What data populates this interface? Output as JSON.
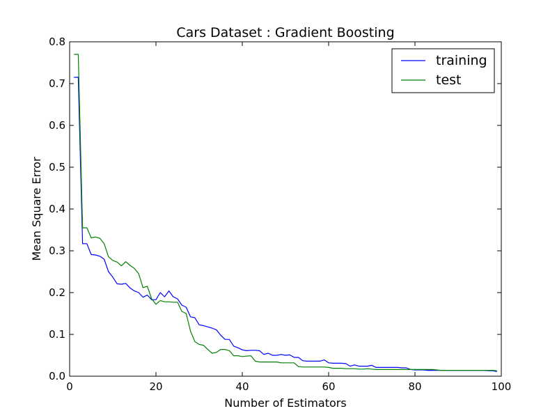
{
  "chart_data": {
    "type": "line",
    "title": "Cars Dataset :  Gradient Boosting",
    "xlabel": "Number of Estimators",
    "ylabel": "Mean Square Error",
    "xlim": [
      0,
      100
    ],
    "ylim": [
      0.0,
      0.8
    ],
    "x_ticks": [
      "0",
      "20",
      "40",
      "60",
      "80",
      "100"
    ],
    "y_ticks": [
      "0.0",
      "0.1",
      "0.2",
      "0.3",
      "0.4",
      "0.5",
      "0.6",
      "0.7",
      "0.8"
    ],
    "grid": false,
    "legend_position": "top-right",
    "series": [
      {
        "name": "training",
        "color": "#0000ff",
        "x": [
          1,
          2,
          3,
          4,
          5,
          6,
          7,
          8,
          9,
          10,
          11,
          12,
          13,
          14,
          15,
          16,
          17,
          18,
          19,
          20,
          21,
          22,
          23,
          24,
          25,
          26,
          27,
          28,
          29,
          30,
          31,
          32,
          33,
          34,
          35,
          36,
          37,
          38,
          39,
          40,
          41,
          42,
          43,
          44,
          45,
          46,
          47,
          48,
          49,
          50,
          51,
          52,
          53,
          54,
          55,
          56,
          57,
          58,
          59,
          60,
          61,
          62,
          63,
          64,
          65,
          66,
          67,
          68,
          69,
          70,
          71,
          72,
          73,
          74,
          75,
          76,
          77,
          78,
          79,
          80,
          81,
          82,
          83,
          84,
          85,
          86,
          87,
          88,
          89,
          90,
          91,
          92,
          93,
          94,
          95,
          96,
          97,
          98,
          99
        ],
        "values": [
          0.715,
          0.715,
          0.317,
          0.317,
          0.291,
          0.29,
          0.287,
          0.28,
          0.25,
          0.237,
          0.221,
          0.22,
          0.222,
          0.211,
          0.204,
          0.2,
          0.189,
          0.194,
          0.183,
          0.183,
          0.2,
          0.19,
          0.204,
          0.19,
          0.185,
          0.17,
          0.165,
          0.142,
          0.14,
          0.123,
          0.121,
          0.118,
          0.115,
          0.111,
          0.098,
          0.088,
          0.088,
          0.072,
          0.068,
          0.063,
          0.061,
          0.062,
          0.062,
          0.061,
          0.052,
          0.055,
          0.05,
          0.05,
          0.052,
          0.05,
          0.051,
          0.045,
          0.045,
          0.037,
          0.036,
          0.036,
          0.036,
          0.036,
          0.039,
          0.032,
          0.031,
          0.031,
          0.031,
          0.03,
          0.024,
          0.027,
          0.024,
          0.024,
          0.024,
          0.026,
          0.021,
          0.021,
          0.021,
          0.021,
          0.021,
          0.021,
          0.02,
          0.02,
          0.016,
          0.015,
          0.015,
          0.015,
          0.014,
          0.014,
          0.014,
          0.014,
          0.014,
          0.014,
          0.014,
          0.014,
          0.014,
          0.014,
          0.014,
          0.014,
          0.014,
          0.014,
          0.013,
          0.013,
          0.011
        ]
      },
      {
        "name": "test",
        "color": "#008000",
        "x": [
          1,
          2,
          3,
          4,
          5,
          6,
          7,
          8,
          9,
          10,
          11,
          12,
          13,
          14,
          15,
          16,
          17,
          18,
          19,
          20,
          21,
          22,
          23,
          24,
          25,
          26,
          27,
          28,
          29,
          30,
          31,
          32,
          33,
          34,
          35,
          36,
          37,
          38,
          39,
          40,
          41,
          42,
          43,
          44,
          45,
          46,
          47,
          48,
          49,
          50,
          51,
          52,
          53,
          54,
          55,
          56,
          57,
          58,
          59,
          60,
          61,
          62,
          63,
          64,
          65,
          66,
          67,
          68,
          69,
          70,
          71,
          72,
          73,
          74,
          75,
          76,
          77,
          78,
          79,
          80,
          81,
          82,
          83,
          84,
          85,
          86,
          87,
          88,
          89,
          90,
          91,
          92,
          93,
          94,
          95,
          96,
          97,
          98,
          99
        ],
        "values": [
          0.77,
          0.77,
          0.355,
          0.355,
          0.331,
          0.333,
          0.33,
          0.317,
          0.286,
          0.277,
          0.273,
          0.264,
          0.274,
          0.265,
          0.258,
          0.245,
          0.212,
          0.215,
          0.185,
          0.172,
          0.181,
          0.178,
          0.178,
          0.177,
          0.177,
          0.155,
          0.15,
          0.108,
          0.083,
          0.076,
          0.074,
          0.064,
          0.055,
          0.057,
          0.064,
          0.064,
          0.061,
          0.049,
          0.049,
          0.047,
          0.048,
          0.049,
          0.036,
          0.034,
          0.034,
          0.034,
          0.034,
          0.034,
          0.032,
          0.032,
          0.032,
          0.032,
          0.023,
          0.022,
          0.022,
          0.022,
          0.022,
          0.022,
          0.022,
          0.021,
          0.019,
          0.019,
          0.019,
          0.018,
          0.018,
          0.018,
          0.017,
          0.017,
          0.018,
          0.017,
          0.016,
          0.016,
          0.016,
          0.016,
          0.016,
          0.016,
          0.016,
          0.016,
          0.016,
          0.016,
          0.016,
          0.016,
          0.016,
          0.016,
          0.015,
          0.014,
          0.014,
          0.014,
          0.014,
          0.014,
          0.014,
          0.014,
          0.014,
          0.014,
          0.014,
          0.014,
          0.014,
          0.014,
          0.013
        ]
      }
    ]
  }
}
